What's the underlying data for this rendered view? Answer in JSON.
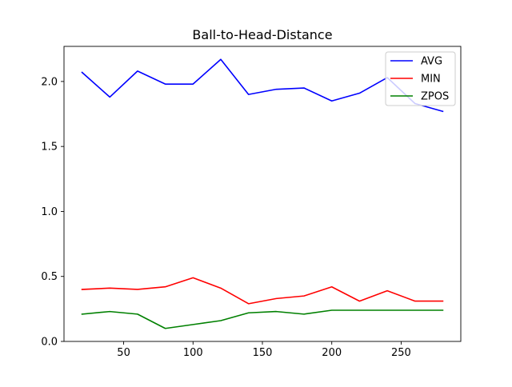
{
  "chart_data": {
    "type": "line",
    "title": "Ball-to-Head-Distance",
    "xlabel": "",
    "ylabel": "",
    "xlim": [
      7,
      293
    ],
    "ylim": [
      0,
      2.27
    ],
    "xticks": [
      50,
      100,
      150,
      200,
      250
    ],
    "yticks": [
      0.0,
      0.5,
      1.0,
      1.5,
      2.0
    ],
    "xtick_labels": [
      "50",
      "100",
      "150",
      "200",
      "250"
    ],
    "ytick_labels": [
      "0.0",
      "0.5",
      "1.0",
      "1.5",
      "2.0"
    ],
    "grid": false,
    "legend_position": "upper right",
    "x": [
      20,
      40,
      60,
      80,
      100,
      120,
      140,
      160,
      180,
      200,
      220,
      240,
      260,
      280
    ],
    "series": [
      {
        "name": "AVG",
        "color": "#0000ff",
        "values": [
          2.07,
          1.88,
          2.08,
          1.98,
          1.98,
          2.17,
          1.9,
          1.94,
          1.95,
          1.85,
          1.91,
          2.03,
          1.83,
          1.77
        ]
      },
      {
        "name": "MIN",
        "color": "#ff0000",
        "values": [
          0.4,
          0.41,
          0.4,
          0.42,
          0.49,
          0.41,
          0.29,
          0.33,
          0.35,
          0.42,
          0.31,
          0.39,
          0.31,
          0.31
        ]
      },
      {
        "name": "ZPOS",
        "color": "#008000",
        "values": [
          0.21,
          0.23,
          0.21,
          0.1,
          0.13,
          0.16,
          0.22,
          0.23,
          0.21,
          0.24,
          0.24,
          0.24,
          0.24,
          0.24
        ]
      }
    ]
  }
}
